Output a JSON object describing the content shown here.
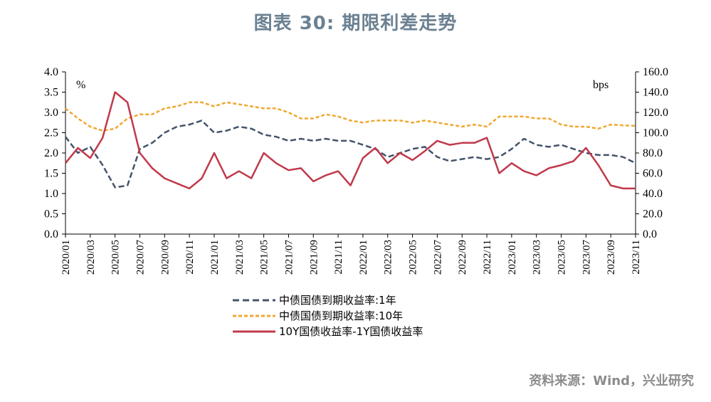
{
  "title": "图表 30: 期限利差走势",
  "source": "资料来源：Wind，兴业研究",
  "chart_data": {
    "type": "line",
    "left_axis": {
      "unit": "%",
      "ylim": [
        0,
        4.0
      ],
      "ticks": [
        "4.0",
        "3.5",
        "3.0",
        "2.5",
        "2.0",
        "1.5",
        "1.0",
        "0.5",
        "0.0"
      ]
    },
    "right_axis": {
      "unit": "bps",
      "ylim": [
        0,
        160
      ],
      "ticks": [
        "160.0",
        "140.0",
        "120.0",
        "100.0",
        "80.0",
        "60.0",
        "40.0",
        "20.0",
        "0.0"
      ]
    },
    "x_tick_labels": [
      "2020/01",
      "2020/03",
      "2020/05",
      "2020/07",
      "2020/09",
      "2020/11",
      "2021/01",
      "2021/03",
      "2021/05",
      "2021/07",
      "2021/09",
      "2021/11",
      "2022/01",
      "2022/03",
      "2022/05",
      "2022/07",
      "2022/09",
      "2022/11",
      "2023/01",
      "2023/03",
      "2023/05",
      "2023/07",
      "2023/09",
      "2023/11"
    ],
    "x_range": [
      "2020/01",
      "2023/11"
    ],
    "series": [
      {
        "name": "中债国债到期收益率:1年",
        "axis": "left",
        "color": "#44546a",
        "style": "dashed",
        "points": [
          [
            "2020/01",
            2.4
          ],
          [
            "2020/02",
            2.0
          ],
          [
            "2020/03",
            2.15
          ],
          [
            "2020/04",
            1.7
          ],
          [
            "2020/05",
            1.15
          ],
          [
            "2020/06",
            1.2
          ],
          [
            "2020/07",
            2.1
          ],
          [
            "2020/08",
            2.25
          ],
          [
            "2020/09",
            2.5
          ],
          [
            "2020/10",
            2.65
          ],
          [
            "2020/11",
            2.7
          ],
          [
            "2020/12",
            2.8
          ],
          [
            "2021/01",
            2.5
          ],
          [
            "2021/02",
            2.55
          ],
          [
            "2021/03",
            2.65
          ],
          [
            "2021/04",
            2.6
          ],
          [
            "2021/05",
            2.45
          ],
          [
            "2021/06",
            2.4
          ],
          [
            "2021/07",
            2.3
          ],
          [
            "2021/08",
            2.35
          ],
          [
            "2021/09",
            2.3
          ],
          [
            "2021/10",
            2.35
          ],
          [
            "2021/11",
            2.3
          ],
          [
            "2021/12",
            2.3
          ],
          [
            "2022/01",
            2.2
          ],
          [
            "2022/02",
            2.1
          ],
          [
            "2022/03",
            1.9
          ],
          [
            "2022/04",
            2.0
          ],
          [
            "2022/05",
            2.1
          ],
          [
            "2022/06",
            2.15
          ],
          [
            "2022/07",
            1.9
          ],
          [
            "2022/08",
            1.8
          ],
          [
            "2022/09",
            1.85
          ],
          [
            "2022/10",
            1.9
          ],
          [
            "2022/11",
            1.85
          ],
          [
            "2022/12",
            1.9
          ],
          [
            "2023/01",
            2.1
          ],
          [
            "2023/02",
            2.35
          ],
          [
            "2023/03",
            2.2
          ],
          [
            "2023/04",
            2.15
          ],
          [
            "2023/05",
            2.2
          ],
          [
            "2023/06",
            2.1
          ],
          [
            "2023/07",
            2.0
          ],
          [
            "2023/08",
            1.95
          ],
          [
            "2023/09",
            1.95
          ],
          [
            "2023/10",
            1.9
          ],
          [
            "2023/11",
            1.75
          ]
        ]
      },
      {
        "name": "中债国债到期收益率:10年",
        "axis": "left",
        "color": "#f0a830",
        "style": "dashed",
        "points": [
          [
            "2020/01",
            3.1
          ],
          [
            "2020/02",
            2.85
          ],
          [
            "2020/03",
            2.65
          ],
          [
            "2020/04",
            2.55
          ],
          [
            "2020/05",
            2.6
          ],
          [
            "2020/06",
            2.85
          ],
          [
            "2020/07",
            2.95
          ],
          [
            "2020/08",
            2.95
          ],
          [
            "2020/09",
            3.1
          ],
          [
            "2020/10",
            3.15
          ],
          [
            "2020/11",
            3.25
          ],
          [
            "2020/12",
            3.25
          ],
          [
            "2021/01",
            3.15
          ],
          [
            "2021/02",
            3.25
          ],
          [
            "2021/03",
            3.2
          ],
          [
            "2021/04",
            3.15
          ],
          [
            "2021/05",
            3.1
          ],
          [
            "2021/06",
            3.1
          ],
          [
            "2021/07",
            3.0
          ],
          [
            "2021/08",
            2.85
          ],
          [
            "2021/09",
            2.85
          ],
          [
            "2021/10",
            2.95
          ],
          [
            "2021/11",
            2.9
          ],
          [
            "2021/12",
            2.8
          ],
          [
            "2022/01",
            2.75
          ],
          [
            "2022/02",
            2.8
          ],
          [
            "2022/03",
            2.8
          ],
          [
            "2022/04",
            2.8
          ],
          [
            "2022/05",
            2.75
          ],
          [
            "2022/06",
            2.8
          ],
          [
            "2022/07",
            2.75
          ],
          [
            "2022/08",
            2.7
          ],
          [
            "2022/09",
            2.65
          ],
          [
            "2022/10",
            2.7
          ],
          [
            "2022/11",
            2.65
          ],
          [
            "2022/12",
            2.9
          ],
          [
            "2023/01",
            2.9
          ],
          [
            "2023/02",
            2.9
          ],
          [
            "2023/03",
            2.85
          ],
          [
            "2023/04",
            2.85
          ],
          [
            "2023/05",
            2.7
          ],
          [
            "2023/06",
            2.65
          ],
          [
            "2023/07",
            2.65
          ],
          [
            "2023/08",
            2.6
          ],
          [
            "2023/09",
            2.7
          ],
          [
            "2023/10",
            2.68
          ],
          [
            "2023/11",
            2.67
          ]
        ]
      },
      {
        "name": "10Y国债收益率-1Y国债收益率",
        "axis": "right",
        "color": "#c0394b",
        "style": "solid",
        "points": [
          [
            "2020/01",
            70
          ],
          [
            "2020/02",
            85
          ],
          [
            "2020/03",
            75
          ],
          [
            "2020/04",
            95
          ],
          [
            "2020/05",
            140
          ],
          [
            "2020/06",
            130
          ],
          [
            "2020/07",
            80
          ],
          [
            "2020/08",
            65
          ],
          [
            "2020/09",
            55
          ],
          [
            "2020/10",
            50
          ],
          [
            "2020/11",
            45
          ],
          [
            "2020/12",
            55
          ],
          [
            "2021/01",
            80
          ],
          [
            "2021/02",
            55
          ],
          [
            "2021/03",
            62
          ],
          [
            "2021/04",
            55
          ],
          [
            "2021/05",
            80
          ],
          [
            "2021/06",
            70
          ],
          [
            "2021/07",
            63
          ],
          [
            "2021/08",
            65
          ],
          [
            "2021/09",
            52
          ],
          [
            "2021/10",
            58
          ],
          [
            "2021/11",
            62
          ],
          [
            "2021/12",
            48
          ],
          [
            "2022/01",
            75
          ],
          [
            "2022/02",
            85
          ],
          [
            "2022/03",
            70
          ],
          [
            "2022/04",
            80
          ],
          [
            "2022/05",
            73
          ],
          [
            "2022/06",
            82
          ],
          [
            "2022/07",
            92
          ],
          [
            "2022/08",
            88
          ],
          [
            "2022/09",
            90
          ],
          [
            "2022/10",
            90
          ],
          [
            "2022/11",
            95
          ],
          [
            "2022/12",
            60
          ],
          [
            "2023/01",
            70
          ],
          [
            "2023/02",
            62
          ],
          [
            "2023/03",
            58
          ],
          [
            "2023/04",
            65
          ],
          [
            "2023/05",
            68
          ],
          [
            "2023/06",
            72
          ],
          [
            "2023/07",
            85
          ],
          [
            "2023/08",
            68
          ],
          [
            "2023/09",
            48
          ],
          [
            "2023/10",
            45
          ],
          [
            "2023/11",
            45
          ]
        ]
      }
    ]
  }
}
